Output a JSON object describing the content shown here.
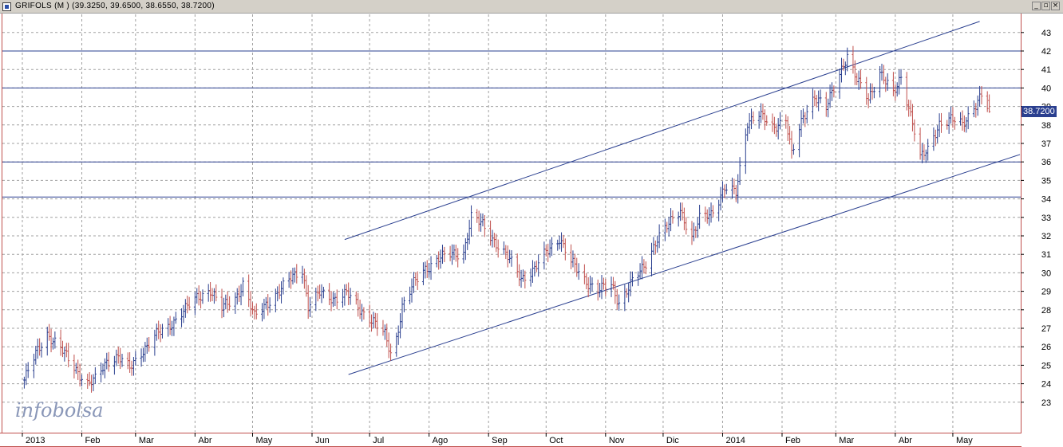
{
  "window": {
    "title": "GRIFOLS (M ) (39.3250, 39.6500, 38.6550, 38.7200)",
    "buttons": {
      "minimize": "_",
      "restore": "▫",
      "close": "×"
    }
  },
  "logo": {
    "text": "infobolsa"
  },
  "last_price_label": "38.7200",
  "colors": {
    "up_bar": "#2a3f8f",
    "down_bar": "#c0504d",
    "grid": "#a0a0a0",
    "trendline": "#2a3f8f",
    "frame": "#c0504d"
  },
  "chart_data": {
    "type": "ohlc",
    "title": "GRIFOLS (M )",
    "ohlc_last": {
      "open": 39.325,
      "high": 39.65,
      "low": 38.655,
      "close": 38.72
    },
    "x_ticks": [
      "2013",
      "Feb",
      "Mar",
      "Abr",
      "May",
      "Jun",
      "Jul",
      "Ago",
      "Sep",
      "Oct",
      "Nov",
      "Dic",
      "2014",
      "Feb",
      "Mar",
      "Abr",
      "May"
    ],
    "y_ticks": [
      23,
      24,
      25,
      26,
      27,
      28,
      29,
      30,
      31,
      32,
      33,
      34,
      35,
      36,
      37,
      38,
      39,
      40,
      41,
      42,
      43
    ],
    "ylim": [
      22,
      44
    ],
    "grid": true,
    "y_axis_side": "right",
    "horizontal_levels": [
      42,
      40,
      36,
      34.1
    ],
    "trend_channel": {
      "upper": {
        "from": [
          "2013-06-18",
          31.8
        ],
        "to": [
          "2014-05-15",
          43.6
        ]
      },
      "lower": {
        "from": [
          "2013-06-20",
          24.5
        ],
        "to": [
          "2014-06-05",
          36.4
        ]
      }
    },
    "close_series": [
      [
        "2013-01-02",
        24.2
      ],
      [
        "2013-01-08",
        25.6
      ],
      [
        "2013-01-14",
        26.7
      ],
      [
        "2013-01-21",
        25.9
      ],
      [
        "2013-01-28",
        24.9
      ],
      [
        "2013-02-04",
        24.0
      ],
      [
        "2013-02-08",
        24.2
      ],
      [
        "2013-02-14",
        25.2
      ],
      [
        "2013-02-20",
        25.5
      ],
      [
        "2013-02-26",
        24.8
      ],
      [
        "2013-03-04",
        25.7
      ],
      [
        "2013-03-11",
        26.6
      ],
      [
        "2013-03-18",
        27.0
      ],
      [
        "2013-03-25",
        27.9
      ],
      [
        "2013-04-02",
        28.6
      ],
      [
        "2013-04-09",
        29.1
      ],
      [
        "2013-04-15",
        28.1
      ],
      [
        "2013-04-22",
        28.6
      ],
      [
        "2013-04-26",
        29.4
      ],
      [
        "2013-05-02",
        27.6
      ],
      [
        "2013-05-08",
        28.3
      ],
      [
        "2013-05-15",
        29.0
      ],
      [
        "2013-05-22",
        29.8
      ],
      [
        "2013-05-27",
        30.2
      ],
      [
        "2013-05-30",
        28.2
      ],
      [
        "2013-06-05",
        28.9
      ],
      [
        "2013-06-12",
        28.6
      ],
      [
        "2013-06-19",
        28.9
      ],
      [
        "2013-06-26",
        28.0
      ],
      [
        "2013-07-03",
        27.4
      ],
      [
        "2013-07-09",
        26.6
      ],
      [
        "2013-07-13",
        25.3
      ],
      [
        "2013-07-18",
        28.2
      ],
      [
        "2013-07-24",
        29.4
      ],
      [
        "2013-07-30",
        30.2
      ],
      [
        "2013-08-06",
        30.8
      ],
      [
        "2013-08-13",
        31.0
      ],
      [
        "2013-08-19",
        31.1
      ],
      [
        "2013-08-23",
        33.0
      ],
      [
        "2013-08-29",
        32.6
      ],
      [
        "2013-09-05",
        31.6
      ],
      [
        "2013-09-12",
        30.7
      ],
      [
        "2013-09-18",
        29.7
      ],
      [
        "2013-09-25",
        30.2
      ],
      [
        "2013-10-01",
        31.1
      ],
      [
        "2013-10-08",
        31.9
      ],
      [
        "2013-10-14",
        30.6
      ],
      [
        "2013-10-21",
        29.6
      ],
      [
        "2013-10-28",
        29.1
      ],
      [
        "2013-11-04",
        29.3
      ],
      [
        "2013-11-08",
        28.4
      ],
      [
        "2013-11-14",
        29.4
      ],
      [
        "2013-11-21",
        30.3
      ],
      [
        "2013-11-28",
        31.9
      ],
      [
        "2013-12-04",
        32.6
      ],
      [
        "2013-12-10",
        33.4
      ],
      [
        "2013-12-16",
        31.9
      ],
      [
        "2013-12-20",
        32.9
      ],
      [
        "2013-12-26",
        33.2
      ],
      [
        "2014-01-02",
        34.6
      ],
      [
        "2014-01-08",
        34.3
      ],
      [
        "2014-01-14",
        38.2
      ],
      [
        "2014-01-20",
        38.6
      ],
      [
        "2014-01-27",
        37.8
      ],
      [
        "2014-02-03",
        38.4
      ],
      [
        "2014-02-06",
        36.4
      ],
      [
        "2014-02-12",
        38.4
      ],
      [
        "2014-02-18",
        39.6
      ],
      [
        "2014-02-24",
        38.9
      ],
      [
        "2014-03-03",
        40.8
      ],
      [
        "2014-03-07",
        41.8
      ],
      [
        "2014-03-12",
        40.4
      ],
      [
        "2014-03-18",
        39.4
      ],
      [
        "2014-03-24",
        40.9
      ],
      [
        "2014-03-31",
        39.6
      ],
      [
        "2014-04-04",
        40.6
      ],
      [
        "2014-04-10",
        38.2
      ],
      [
        "2014-04-14",
        36.2
      ],
      [
        "2014-04-18",
        36.6
      ],
      [
        "2014-04-24",
        38.1
      ],
      [
        "2014-04-30",
        38.3
      ],
      [
        "2014-05-06",
        38.0
      ],
      [
        "2014-05-12",
        39.0
      ],
      [
        "2014-05-16",
        39.6
      ],
      [
        "2014-05-20",
        38.72
      ]
    ]
  }
}
